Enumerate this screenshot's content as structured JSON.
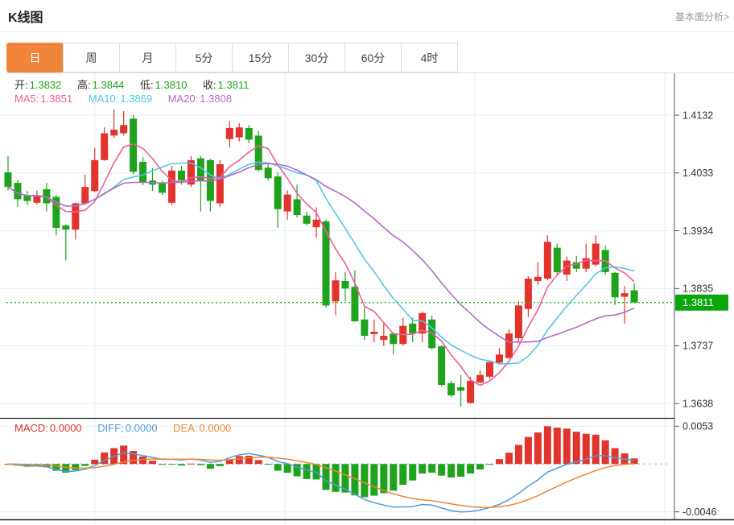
{
  "header": {
    "title": "K线图",
    "analysis_link": "基本面分析>"
  },
  "tabs": [
    "日",
    "周",
    "月",
    "5分",
    "15分",
    "30分",
    "60分",
    "4时"
  ],
  "active_tab": "日",
  "ohlc_legend": {
    "open_label": "开:",
    "open": "1.3832",
    "high_label": "高:",
    "high": "1.3844",
    "low_label": "低:",
    "low": "1.3810",
    "close_label": "收:",
    "close": "1.3811"
  },
  "ma_legend": {
    "ma5_label": "MA5:",
    "ma5": "1.3851",
    "ma10_label": "MA10:",
    "ma10": "1.3869",
    "ma20_label": "MA20:",
    "ma20": "1.3808"
  },
  "macd_legend": {
    "macd_label": "MACD:",
    "macd": "0.0000",
    "diff_label": "DIFF:",
    "diff": "0.0000",
    "dea_label": "DEA:",
    "dea": "0.0000"
  },
  "price_axis_labels": [
    "1.4132",
    "1.4033",
    "1.3934",
    "1.3835",
    "1.3737",
    "1.3638"
  ],
  "macd_axis_labels": {
    "max": "0.0053",
    "min": "-0.0046"
  },
  "current_price_tag": "1.3811",
  "colors": {
    "up": "#e0342c",
    "down": "#1fa31d",
    "ma5": "#ef5d9c",
    "ma10": "#54c7e5",
    "ma20": "#b56ac6",
    "diff": "#4d9bdb",
    "dea": "#ef8532",
    "grid": "#e6eef5",
    "axis_text": "#333333",
    "axis_line": "#555555",
    "panel_divider": "#222222",
    "current_line": "#2eb82e",
    "badge_bg": "#0ba60b",
    "zero_line": "#a8d4f2",
    "tab_active_bg": "#ef8539",
    "legend_label": "#333333",
    "legend_value_green": "#21a21f"
  },
  "chart_data": {
    "type": "candlestick+macd",
    "title": "K线图",
    "interval": "日",
    "legend_position": "top-left",
    "grid": true,
    "price_axis_values": [
      1.4132,
      1.4033,
      1.3934,
      1.3835,
      1.3737,
      1.3638
    ],
    "y_range": [
      1.3638,
      1.4132
    ],
    "current_price": 1.3811,
    "ma_periods": [
      5,
      10,
      20
    ],
    "macd_params": [
      12,
      26,
      9
    ],
    "macd_axis_values": [
      0.0053,
      -0.0046
    ],
    "candles": [
      [
        1.4034,
        1.4062,
        1.4003,
        1.4009
      ],
      [
        1.4016,
        1.4021,
        1.3975,
        1.3988
      ],
      [
        1.3995,
        1.4002,
        1.3978,
        1.3985
      ],
      [
        1.3982,
        1.4003,
        1.3979,
        1.3995
      ],
      [
        1.4005,
        1.4016,
        1.3967,
        1.3981
      ],
      [
        1.3992,
        1.3995,
        1.3926,
        1.3939
      ],
      [
        1.3943,
        1.3945,
        1.3883,
        1.3936
      ],
      [
        1.3936,
        1.3982,
        1.3919,
        1.3981
      ],
      [
        1.3981,
        1.403,
        1.3979,
        1.4009
      ],
      [
        1.4002,
        1.4076,
        1.4,
        1.4055
      ],
      [
        1.4055,
        1.4111,
        1.4054,
        1.4101
      ],
      [
        1.4097,
        1.4142,
        1.4093,
        1.4107
      ],
      [
        1.4101,
        1.4139,
        1.4097,
        1.4115
      ],
      [
        1.4126,
        1.4132,
        1.4031,
        1.4035
      ],
      [
        1.4052,
        1.406,
        1.4012,
        1.4017
      ],
      [
        1.402,
        1.4041,
        1.4002,
        1.4013
      ],
      [
        1.4016,
        1.402,
        1.3995,
        1.3999
      ],
      [
        1.3982,
        1.4045,
        1.3978,
        1.4037
      ],
      [
        1.4037,
        1.4045,
        1.4013,
        1.402
      ],
      [
        1.4013,
        1.4062,
        1.4009,
        1.4055
      ],
      [
        1.4058,
        1.4062,
        1.3967,
        1.402
      ],
      [
        1.4055,
        1.4057,
        1.3967,
        1.3985
      ],
      [
        1.3981,
        1.4055,
        1.3975,
        1.4048
      ],
      [
        1.4091,
        1.4122,
        1.4077,
        1.411
      ],
      [
        1.4094,
        1.4118,
        1.4087,
        1.4111
      ],
      [
        1.411,
        1.4115,
        1.4084,
        1.409
      ],
      [
        1.4097,
        1.4105,
        1.4035,
        1.4038
      ],
      [
        1.4042,
        1.4048,
        1.402,
        1.4024
      ],
      [
        1.4027,
        1.4034,
        1.3939,
        1.3971
      ],
      [
        1.3967,
        1.4003,
        1.3953,
        1.3996
      ],
      [
        1.3988,
        1.4013,
        1.3957,
        1.3961
      ],
      [
        1.396,
        1.3967,
        1.3943,
        1.3946
      ],
      [
        1.394,
        1.3974,
        1.3922,
        1.3953
      ],
      [
        1.395,
        1.3953,
        1.3803,
        1.3806
      ],
      [
        1.3813,
        1.3863,
        1.3789,
        1.3849
      ],
      [
        1.3848,
        1.3863,
        1.3813,
        1.3835
      ],
      [
        1.3838,
        1.3866,
        1.3778,
        1.3779
      ],
      [
        1.3782,
        1.3807,
        1.3747,
        1.3754
      ],
      [
        1.3757,
        1.3782,
        1.3743,
        1.3761
      ],
      [
        1.3747,
        1.3775,
        1.3737,
        1.3754
      ],
      [
        1.3758,
        1.376,
        1.3722,
        1.374
      ],
      [
        1.374,
        1.3785,
        1.3737,
        1.3771
      ],
      [
        1.3775,
        1.3785,
        1.3743,
        1.3758
      ],
      [
        1.3758,
        1.3796,
        1.3743,
        1.3793
      ],
      [
        1.3782,
        1.3789,
        1.373,
        1.3733
      ],
      [
        1.3736,
        1.3738,
        1.3667,
        1.367
      ],
      [
        1.3673,
        1.3677,
        1.3649,
        1.3652
      ],
      [
        1.3666,
        1.3687,
        1.3633,
        1.366
      ],
      [
        1.3639,
        1.3684,
        1.3638,
        1.3677
      ],
      [
        1.3674,
        1.3695,
        1.3673,
        1.3687
      ],
      [
        1.3684,
        1.371,
        1.368,
        1.3709
      ],
      [
        1.3708,
        1.3733,
        1.3705,
        1.3722
      ],
      [
        1.3716,
        1.3765,
        1.3715,
        1.3758
      ],
      [
        1.375,
        1.3813,
        1.3744,
        1.3806
      ],
      [
        1.38,
        1.3856,
        1.3786,
        1.3852
      ],
      [
        1.3848,
        1.388,
        1.3841,
        1.3855
      ],
      [
        1.3852,
        1.3926,
        1.3849,
        1.3915
      ],
      [
        1.3905,
        1.3912,
        1.3859,
        1.3863
      ],
      [
        1.3859,
        1.389,
        1.3848,
        1.3883
      ],
      [
        1.388,
        1.3891,
        1.3863,
        1.3869
      ],
      [
        1.3869,
        1.3912,
        1.3863,
        1.3887
      ],
      [
        1.3876,
        1.3926,
        1.3873,
        1.3912
      ],
      [
        1.3901,
        1.3908,
        1.3859,
        1.3863
      ],
      [
        1.3862,
        1.3864,
        1.3807,
        1.382
      ],
      [
        1.3821,
        1.3839,
        1.3775,
        1.3827
      ],
      [
        1.3832,
        1.3844,
        1.381,
        1.3811
      ]
    ]
  }
}
